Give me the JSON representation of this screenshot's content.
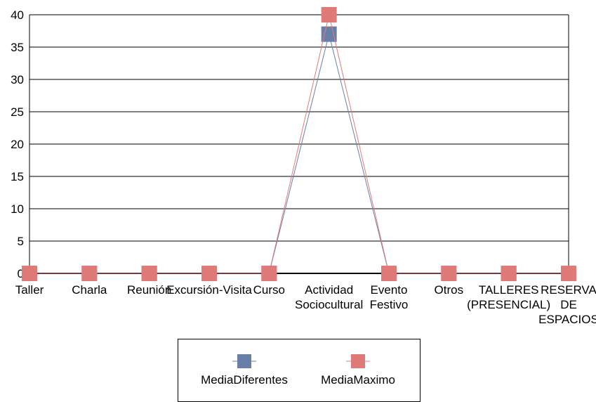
{
  "chart_data": {
    "type": "line",
    "categories": [
      "Taller",
      "Charla",
      "Reunión",
      "Excursión-Visita",
      "Curso",
      "Actividad Sociocultural",
      "Evento Festivo",
      "Otros",
      "TALLERES (PRESENCIAL)",
      "RESERVA DE ESPACIOS"
    ],
    "category_lines": [
      [
        "Taller"
      ],
      [
        "Charla"
      ],
      [
        "Reunión"
      ],
      [
        "Excursión-Visita"
      ],
      [
        "Curso"
      ],
      [
        "Actividad",
        "Sociocultural"
      ],
      [
        "Evento",
        "Festivo"
      ],
      [
        "Otros"
      ],
      [
        "TALLERES",
        "(PRESENCIAL)"
      ],
      [
        "RESERVA",
        "DE",
        "ESPACIOS"
      ]
    ],
    "series": [
      {
        "name": "MediaDiferentes",
        "values": [
          0,
          0,
          0,
          0,
          0,
          37,
          0,
          0,
          0,
          0
        ],
        "color": "#6a7fa8"
      },
      {
        "name": "MediaMaximo",
        "values": [
          0,
          0,
          0,
          0,
          0,
          40,
          0,
          0,
          0,
          0
        ],
        "color": "#e07a78"
      }
    ],
    "ylim": [
      0,
      40
    ],
    "yticks": [
      0,
      5,
      10,
      15,
      20,
      25,
      30,
      35,
      40
    ],
    "grid": true,
    "legend_position": "bottom",
    "title": "",
    "xlabel": "",
    "ylabel": ""
  }
}
